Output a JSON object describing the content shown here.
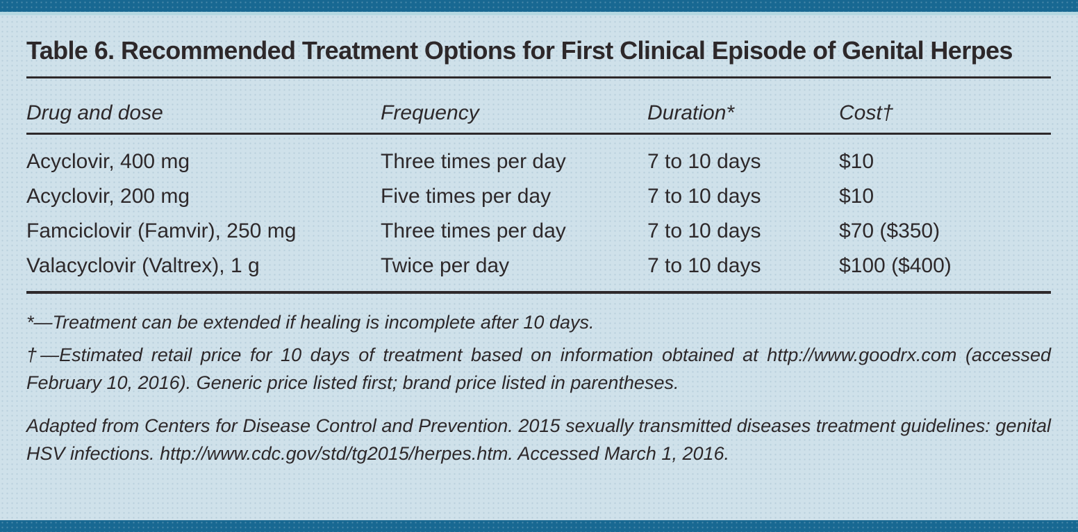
{
  "table": {
    "title": "Table 6. Recommended Treatment Options for First Clinical Episode of Genital Herpes",
    "columns": [
      "Drug and dose",
      "Frequency",
      "Duration*",
      "Cost†"
    ],
    "rows": [
      [
        "Acyclovir, 400 mg",
        "Three times per day",
        "7 to 10 days",
        "$10"
      ],
      [
        "Acyclovir, 200 mg",
        "Five times per day",
        "7 to 10 days",
        "$10"
      ],
      [
        "Famciclovir (Famvir), 250 mg",
        "Three times per day",
        "7 to 10 days",
        "$70 ($350)"
      ],
      [
        "Valacyclovir (Valtrex), 1 g",
        "Twice per day",
        "7 to 10 days",
        "$100 ($400)"
      ]
    ],
    "footnotes": [
      "*—Treatment can be extended if healing is incomplete after 10 days.",
      "†—Estimated retail price for 10 days of treatment based on information obtained at http://www.goodrx.com (accessed February 10, 2016). Generic price listed first; brand price listed in parentheses."
    ],
    "source": "Adapted from Centers for Disease Control and Prevention. 2015 sexually transmitted diseases treatment guidelines: genital HSV infections. http://www.cdc.gov/std/tg2015/herpes.htm. Accessed March 1, 2016."
  },
  "colors": {
    "bar": "#186892",
    "bg": "#cfe1ea",
    "ink": "#2d282a"
  }
}
